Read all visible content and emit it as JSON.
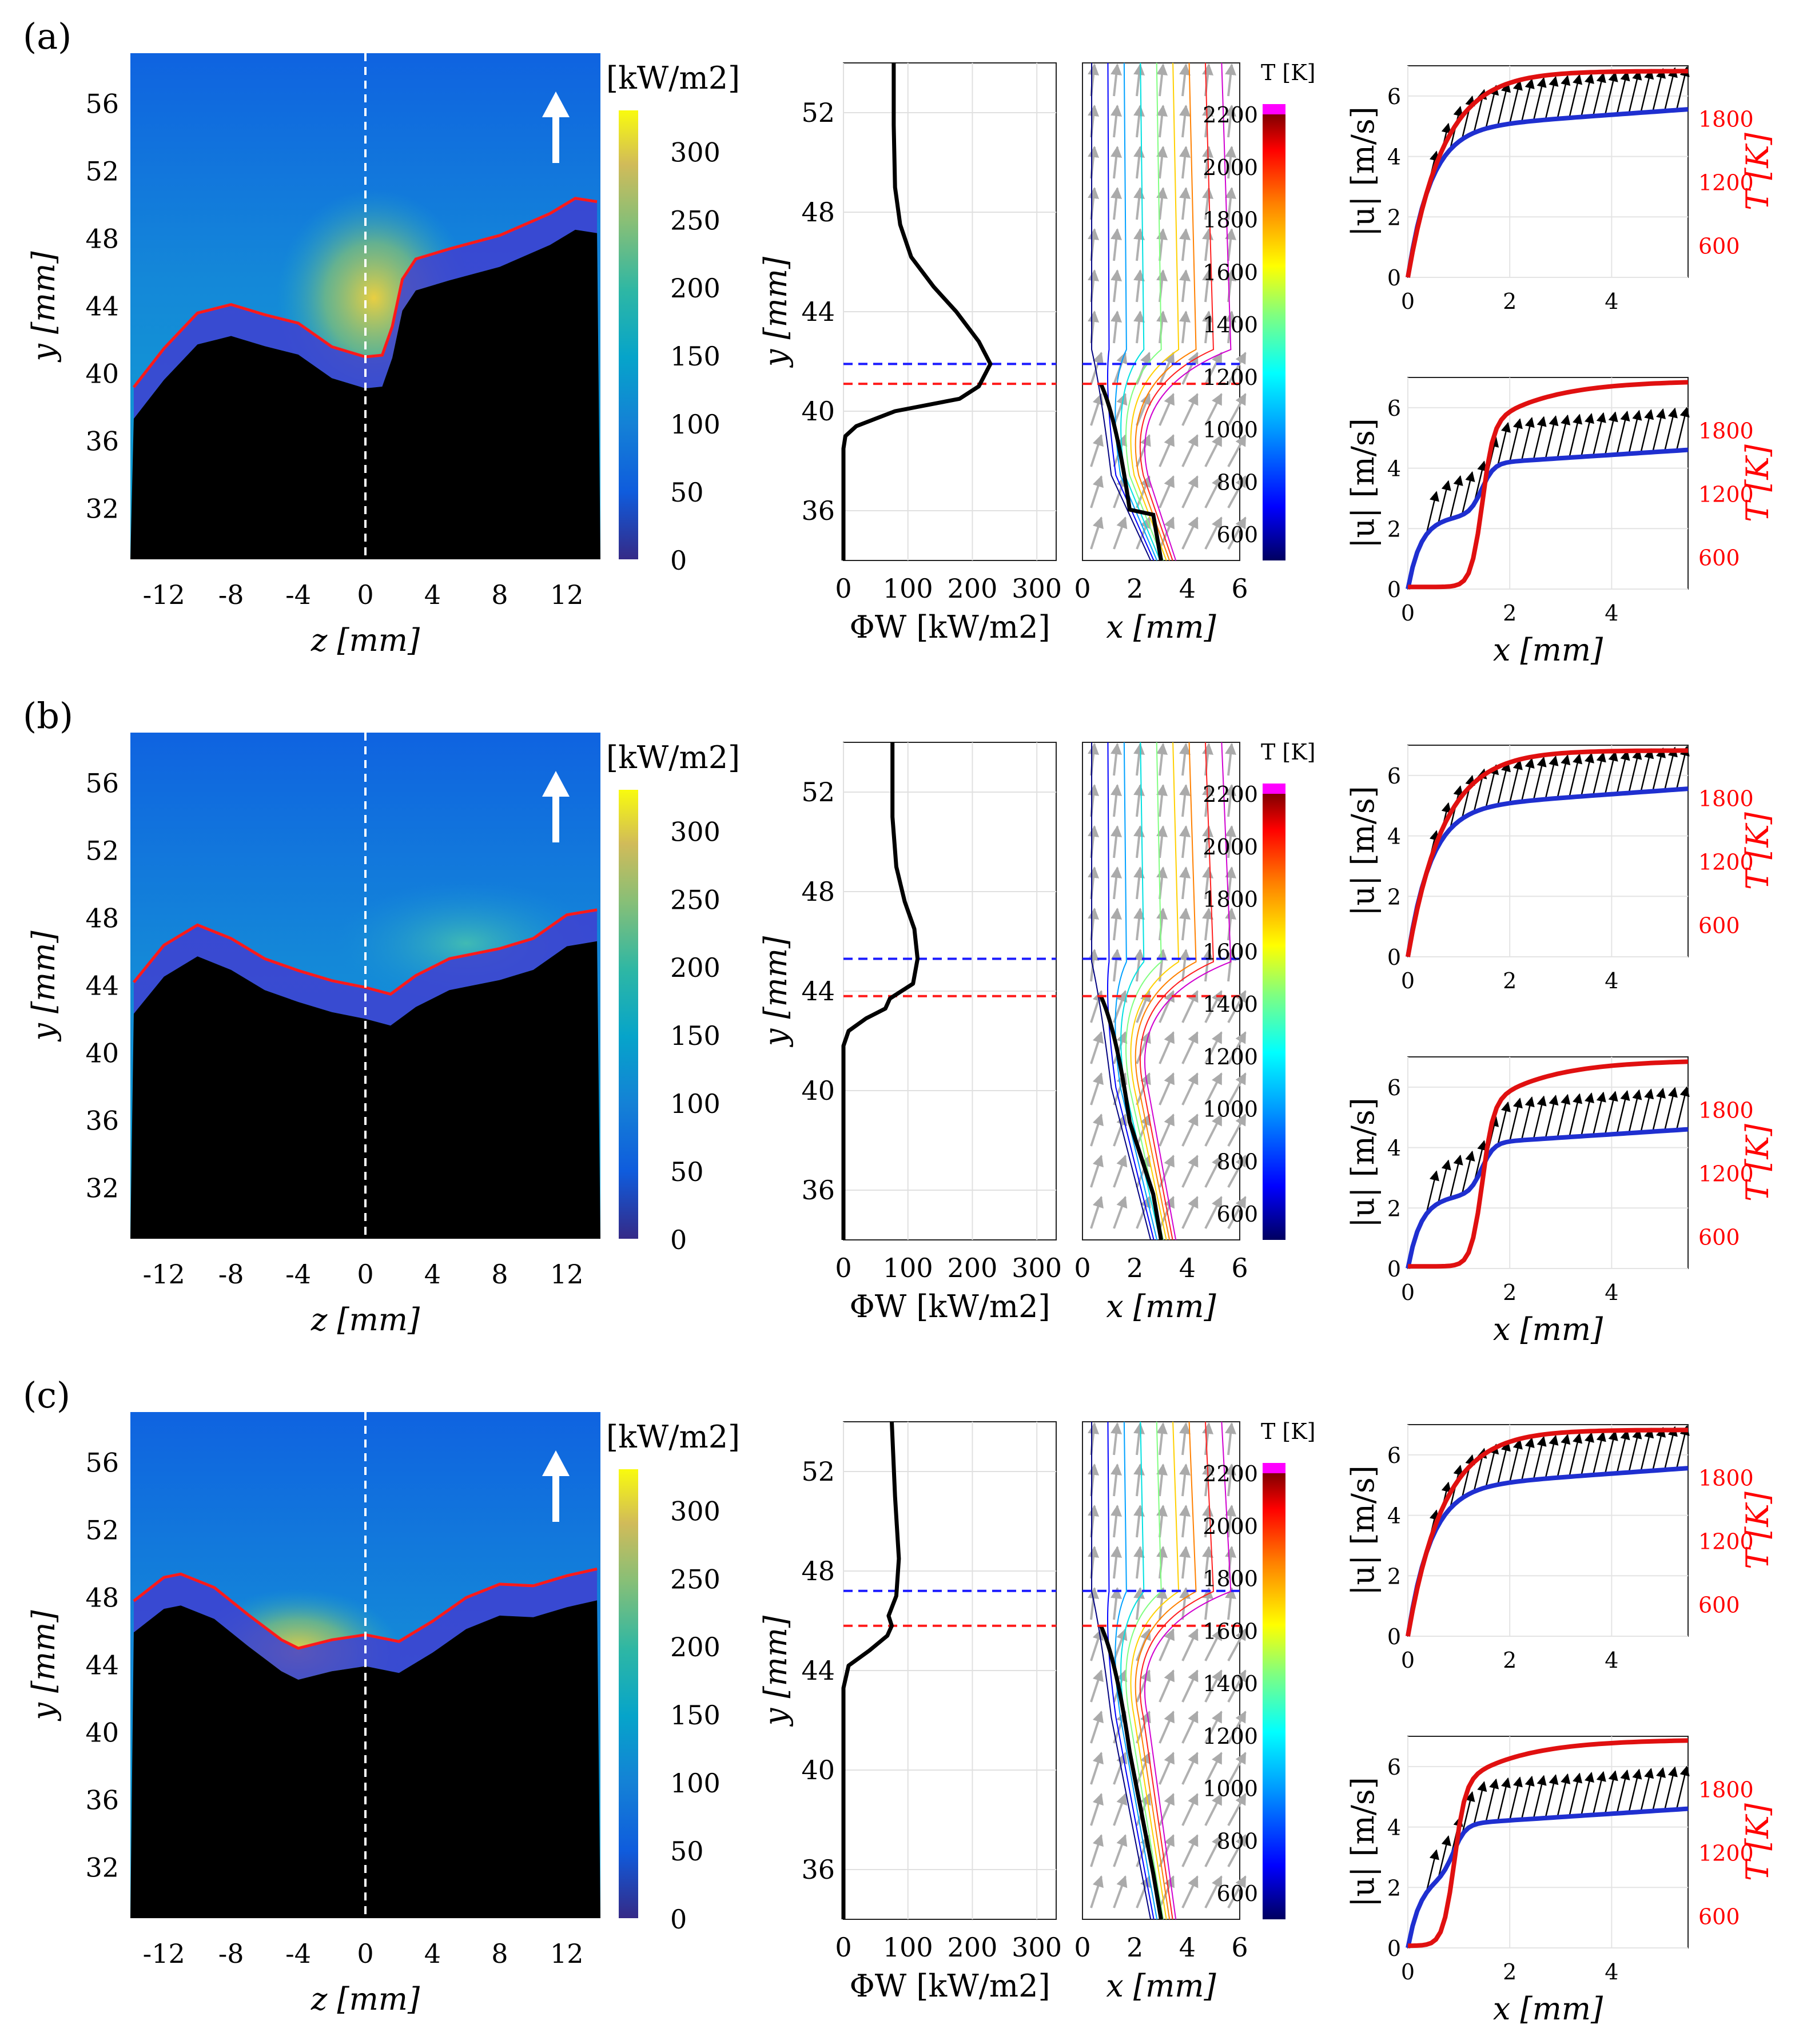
{
  "figure": {
    "panels": [
      {
        "label": "(a)",
        "flux_peak": 228,
        "blue_line_y": 41.9,
        "red_line_y": 41.1,
        "flame_curve": [
          [
            -13.8,
            39.2
          ],
          [
            -12,
            41.5
          ],
          [
            -10,
            43.6
          ],
          [
            -8,
            44.1
          ],
          [
            -6,
            43.5
          ],
          [
            -4,
            43.0
          ],
          [
            -2,
            41.6
          ],
          [
            0,
            41.0
          ],
          [
            1,
            41.1
          ],
          [
            1.6,
            42.8
          ],
          [
            2.2,
            45.6
          ],
          [
            3,
            46.8
          ],
          [
            5,
            47.4
          ],
          [
            8,
            48.2
          ],
          [
            11,
            49.5
          ],
          [
            12.5,
            50.4
          ],
          [
            13.8,
            50.2
          ]
        ],
        "flux_profile": [
          [
            0,
            34.0
          ],
          [
            0,
            38.5
          ],
          [
            3,
            39.0
          ],
          [
            20,
            39.4
          ],
          [
            80,
            40.0
          ],
          [
            180,
            40.5
          ],
          [
            210,
            41.0
          ],
          [
            228,
            41.9
          ],
          [
            210,
            42.8
          ],
          [
            175,
            44.0
          ],
          [
            140,
            45.0
          ],
          [
            105,
            46.2
          ],
          [
            88,
            47.5
          ],
          [
            80,
            49.0
          ],
          [
            78,
            51.5
          ],
          [
            78,
            54.0
          ]
        ],
        "bottom_T_curve": "sharp"
      },
      {
        "label": "(b)",
        "flux_peak": 112,
        "blue_line_y": 45.3,
        "red_line_y": 43.8,
        "flame_curve": [
          [
            -13.8,
            44.2
          ],
          [
            -12,
            46.4
          ],
          [
            -10,
            47.6
          ],
          [
            -8,
            46.8
          ],
          [
            -6,
            45.6
          ],
          [
            -4,
            44.9
          ],
          [
            -2,
            44.3
          ],
          [
            0,
            43.9
          ],
          [
            1.5,
            43.5
          ],
          [
            3,
            44.6
          ],
          [
            5,
            45.6
          ],
          [
            8,
            46.2
          ],
          [
            10,
            46.8
          ],
          [
            12,
            48.2
          ],
          [
            13.8,
            48.5
          ]
        ],
        "flux_profile": [
          [
            0,
            34.0
          ],
          [
            0,
            41.8
          ],
          [
            8,
            42.4
          ],
          [
            35,
            42.9
          ],
          [
            65,
            43.3
          ],
          [
            72,
            43.7
          ],
          [
            108,
            44.3
          ],
          [
            115,
            45.3
          ],
          [
            110,
            46.5
          ],
          [
            95,
            47.6
          ],
          [
            82,
            49.0
          ],
          [
            76,
            51.0
          ],
          [
            76,
            54.0
          ]
        ],
        "bottom_T_curve": "sharp"
      },
      {
        "label": "(c)",
        "flux_peak": 88,
        "blue_line_y": 47.2,
        "red_line_y": 45.8,
        "flame_curve": [
          [
            -13.8,
            47.8
          ],
          [
            -12,
            49.2
          ],
          [
            -11,
            49.4
          ],
          [
            -9,
            48.6
          ],
          [
            -7,
            47.0
          ],
          [
            -5,
            45.5
          ],
          [
            -4,
            45.0
          ],
          [
            -2,
            45.5
          ],
          [
            0,
            45.8
          ],
          [
            2,
            45.4
          ],
          [
            4,
            46.6
          ],
          [
            6,
            48.0
          ],
          [
            8,
            48.8
          ],
          [
            10,
            48.7
          ],
          [
            12,
            49.3
          ],
          [
            13.8,
            49.7
          ]
        ],
        "flux_profile": [
          [
            0,
            34.0
          ],
          [
            0,
            43.3
          ],
          [
            8,
            44.2
          ],
          [
            40,
            44.8
          ],
          [
            68,
            45.4
          ],
          [
            75,
            45.8
          ],
          [
            70,
            46.2
          ],
          [
            82,
            47.0
          ],
          [
            86,
            48.5
          ],
          [
            80,
            51.0
          ],
          [
            75,
            54.0
          ]
        ],
        "bottom_T_curve": "gradual"
      }
    ]
  },
  "chart_data": [
    {
      "type": "heatmap",
      "name": "wall heat flux map",
      "xlabel": "z [mm]",
      "ylabel": "y [mm]",
      "xlim": [
        -14,
        14
      ],
      "ylim": [
        29,
        59
      ],
      "xticks": [
        "-12",
        "-8",
        "-4",
        "0",
        "4",
        "8",
        "12"
      ],
      "yticks": [
        "32",
        "36",
        "40",
        "44",
        "48",
        "52",
        "56"
      ],
      "colorbar_title": "[kW/m2]",
      "colorbar_range": [
        0,
        330
      ],
      "colorbar_ticks": [
        "0",
        "50",
        "100",
        "150",
        "200",
        "250",
        "300"
      ]
    },
    {
      "type": "line",
      "name": "wall heat flux profile",
      "xlabel": "ΦW [kW/m2]",
      "ylabel": "y [mm]",
      "xlim": [
        0,
        330
      ],
      "ylim": [
        34,
        54
      ],
      "xticks": [
        "0",
        "100",
        "200",
        "300"
      ],
      "yticks": [
        "36",
        "40",
        "44",
        "48",
        "52"
      ]
    },
    {
      "type": "line",
      "name": "temperature isolines and velocity field",
      "xlabel": "x [mm]",
      "xlim": [
        0,
        6
      ],
      "xticks": [
        "0",
        "2",
        "4",
        "6"
      ],
      "colorbar_title": "T [K]",
      "colorbar_range": [
        500,
        2200
      ],
      "colorbar_ticks": [
        "600",
        "800",
        "1000",
        "1200",
        "1400",
        "1600",
        "1800",
        "2000",
        "2200"
      ]
    },
    {
      "type": "line",
      "name": "velocity and temperature profiles",
      "xlabel": "x [mm]",
      "ylabel_left": "|u| [m/s]",
      "ylabel_right": "T [K]",
      "xlim": [
        0,
        5.5
      ],
      "ylim_left": [
        0,
        7
      ],
      "ylim_right": [
        300,
        2300
      ],
      "xticks": [
        "0",
        "2",
        "4"
      ],
      "yticks_left": [
        "0",
        "2",
        "4",
        "6"
      ],
      "yticks_right": [
        "600",
        "1200",
        "1800"
      ],
      "series": [
        {
          "name": "|u|",
          "color": "#1f2fd0"
        },
        {
          "name": "T",
          "color": "#e01010"
        }
      ]
    }
  ],
  "colors": {
    "flame_front": "#ff1a1a",
    "blue_dash": "#1a1aff",
    "red_dash": "#ff1a1a",
    "velocity_curve": "#1f2fd0",
    "temperature_curve": "#e01010",
    "right_axis_text": "#ff0000",
    "arrow_grey": "#b0b0b0"
  },
  "icons": [
    "flow-direction-arrow-icon"
  ]
}
